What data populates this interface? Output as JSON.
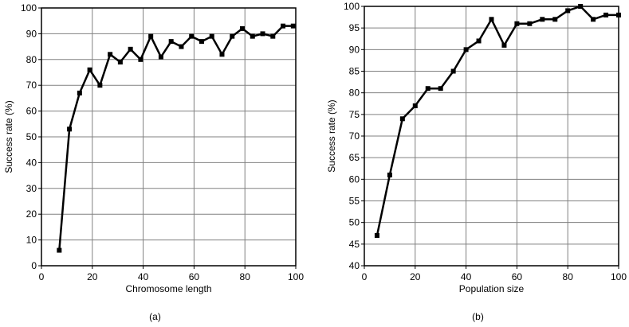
{
  "chart_data": [
    {
      "type": "line",
      "caption": "(a)",
      "xlabel": "Chromosome length",
      "ylabel": "Success rate (%)",
      "xlim": [
        0,
        100
      ],
      "ylim": [
        0,
        100
      ],
      "xticks": [
        0,
        20,
        40,
        60,
        80,
        100
      ],
      "yticks": [
        0,
        10,
        20,
        30,
        40,
        50,
        60,
        70,
        80,
        90,
        100
      ],
      "grid": true,
      "series": [
        {
          "color": "#000000",
          "x": [
            7,
            11,
            15,
            19,
            23,
            27,
            31,
            35,
            39,
            43,
            47,
            51,
            55,
            59,
            63,
            67,
            71,
            75,
            79,
            83,
            87,
            91,
            95,
            99
          ],
          "y": [
            6,
            53,
            67,
            76,
            70,
            82,
            79,
            84,
            80,
            89,
            81,
            87,
            85,
            89,
            87,
            89,
            82,
            89,
            92,
            89,
            90,
            89,
            93,
            93
          ]
        }
      ]
    },
    {
      "type": "line",
      "caption": "(b)",
      "xlabel": "Population size",
      "ylabel": "Success rate (%)",
      "xlim": [
        0,
        100
      ],
      "ylim": [
        40,
        100
      ],
      "xticks": [
        0,
        20,
        40,
        60,
        80,
        100
      ],
      "yticks": [
        40,
        45,
        50,
        55,
        60,
        65,
        70,
        75,
        80,
        85,
        90,
        95,
        100
      ],
      "grid": true,
      "series": [
        {
          "color": "#000000",
          "x": [
            5,
            10,
            15,
            20,
            25,
            30,
            35,
            40,
            45,
            50,
            55,
            60,
            65,
            70,
            75,
            80,
            85,
            90,
            95,
            100
          ],
          "y": [
            47,
            61,
            74,
            77,
            81,
            81,
            85,
            90,
            92,
            97,
            91,
            96,
            96,
            97,
            97,
            99,
            100,
            97,
            98,
            98
          ]
        }
      ]
    }
  ]
}
